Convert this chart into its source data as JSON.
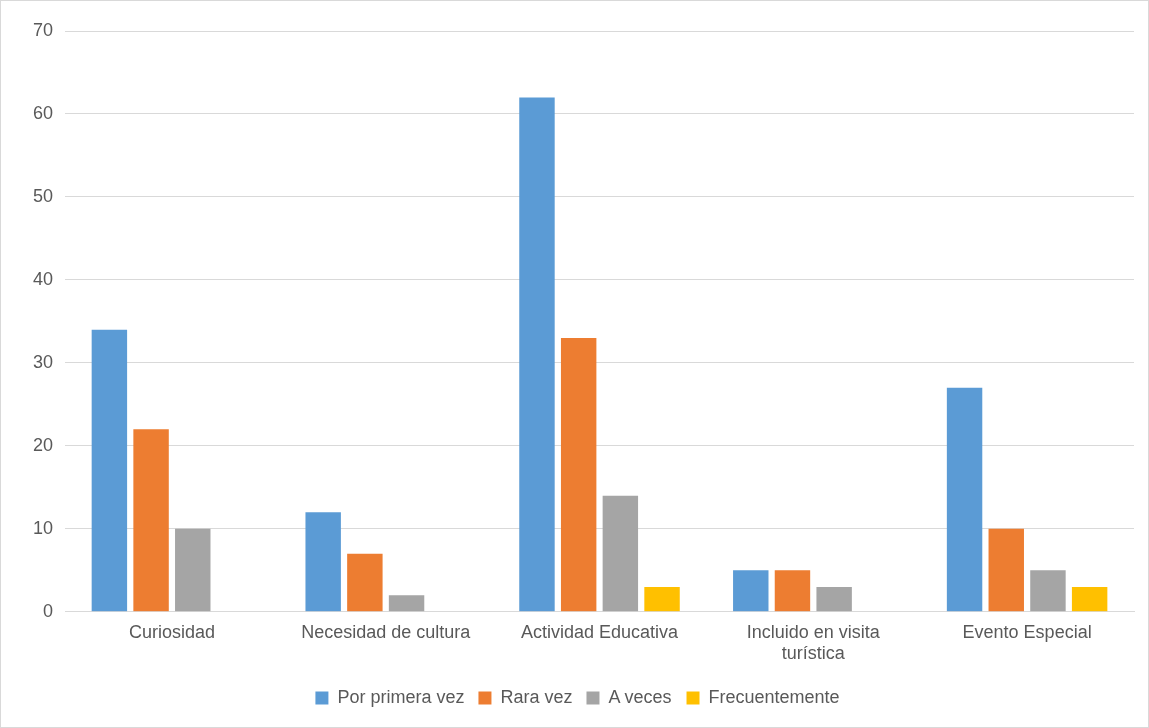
{
  "chart_data": {
    "type": "bar",
    "categories": [
      "Curiosidad",
      "Necesidad de cultura",
      "Actividad Educativa",
      "Incluido en visita turística",
      "Evento Especial"
    ],
    "series": [
      {
        "name": "Por primera vez",
        "color": "#5b9bd5",
        "values": [
          34,
          12,
          62,
          5,
          27
        ]
      },
      {
        "name": "Rara vez",
        "color": "#ed7d31",
        "values": [
          22,
          7,
          33,
          5,
          10
        ]
      },
      {
        "name": "A veces",
        "color": "#a5a5a5",
        "values": [
          10,
          2,
          14,
          3,
          5
        ]
      },
      {
        "name": "Frecuentemente",
        "color": "#ffc000",
        "values": [
          0,
          0,
          3,
          0,
          3
        ]
      }
    ],
    "ylim": [
      0,
      70
    ],
    "yticks": [
      0,
      10,
      20,
      30,
      40,
      50,
      60,
      70
    ],
    "grid": "y",
    "legend": "bottom"
  }
}
